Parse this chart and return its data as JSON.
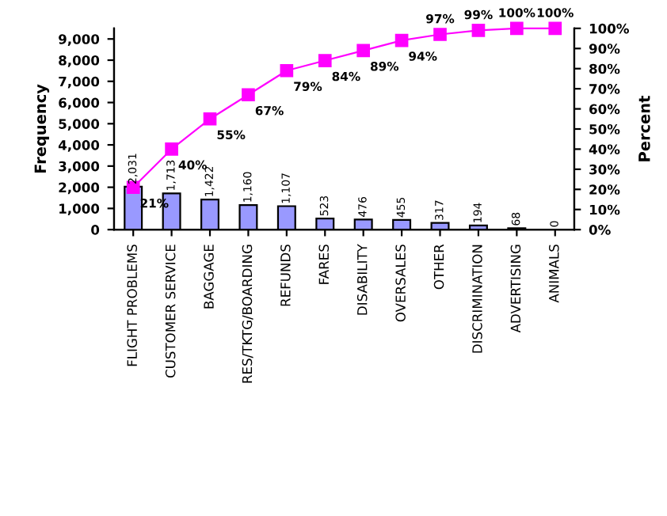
{
  "chart_data": {
    "type": "bar",
    "ylabel": "Frequency",
    "y2label": "Percent",
    "categories": [
      "FLIGHT PROBLEMS",
      "CUSTOMER SERVICE",
      "BAGGAGE",
      "RES/TKTG/BOARDING",
      "REFUNDS",
      "FARES",
      "DISABILITY",
      "OVERSALES",
      "OTHER",
      "DISCRIMINATION",
      "ADVERTISING",
      "ANIMALS"
    ],
    "series": [
      {
        "color": "#9999ff",
        "values": [
          2031,
          1713,
          1422,
          1160,
          1107,
          523,
          476,
          455,
          317,
          194,
          68,
          0
        ],
        "value_labels": [
          "2,031",
          "1,713",
          "1,422",
          "1,160",
          "1,107",
          "523",
          "476",
          "455",
          "317",
          "194",
          "68",
          "0"
        ]
      },
      {
        "type": "line",
        "axis": "y2",
        "color": "#ff00ff",
        "marker": "square",
        "values": [
          21,
          40,
          55,
          67,
          79,
          84,
          89,
          94,
          97,
          99,
          100,
          100
        ],
        "value_labels": [
          "21%",
          "40%",
          "55%",
          "67%",
          "79%",
          "84%",
          "89%",
          "94%",
          "97%",
          "99%",
          "100%",
          "100%"
        ]
      }
    ],
    "ylim": [
      0,
      9500
    ],
    "yticks": [
      0,
      {
        "value": 1000,
        "label": "1,000"
      },
      {
        "value": 2000,
        "label": "2,000"
      },
      {
        "value": 3000,
        "label": "3,000"
      },
      {
        "value": 4000,
        "label": "4,000"
      },
      {
        "value": 5000,
        "label": "5,000"
      },
      {
        "value": 6000,
        "label": "6,000"
      },
      {
        "value": 7000,
        "label": "7,000"
      },
      {
        "value": 8000,
        "label": "8,000"
      },
      {
        "value": 9000,
        "label": "9,000"
      }
    ],
    "y2lim": [
      0,
      100
    ],
    "y2ticks": [
      {
        "value": 0,
        "label": "0%"
      },
      {
        "value": 10,
        "label": "10%"
      },
      {
        "value": 20,
        "label": "20%"
      },
      {
        "value": 30,
        "label": "30%"
      },
      {
        "value": 40,
        "label": "40%"
      },
      {
        "value": 50,
        "label": "50%"
      },
      {
        "value": 60,
        "label": "60%"
      },
      {
        "value": 70,
        "label": "70%"
      },
      {
        "value": 80,
        "label": "80%"
      },
      {
        "value": 90,
        "label": "90%"
      },
      {
        "value": 100,
        "label": "100%"
      }
    ],
    "grid": false,
    "legend": false
  }
}
